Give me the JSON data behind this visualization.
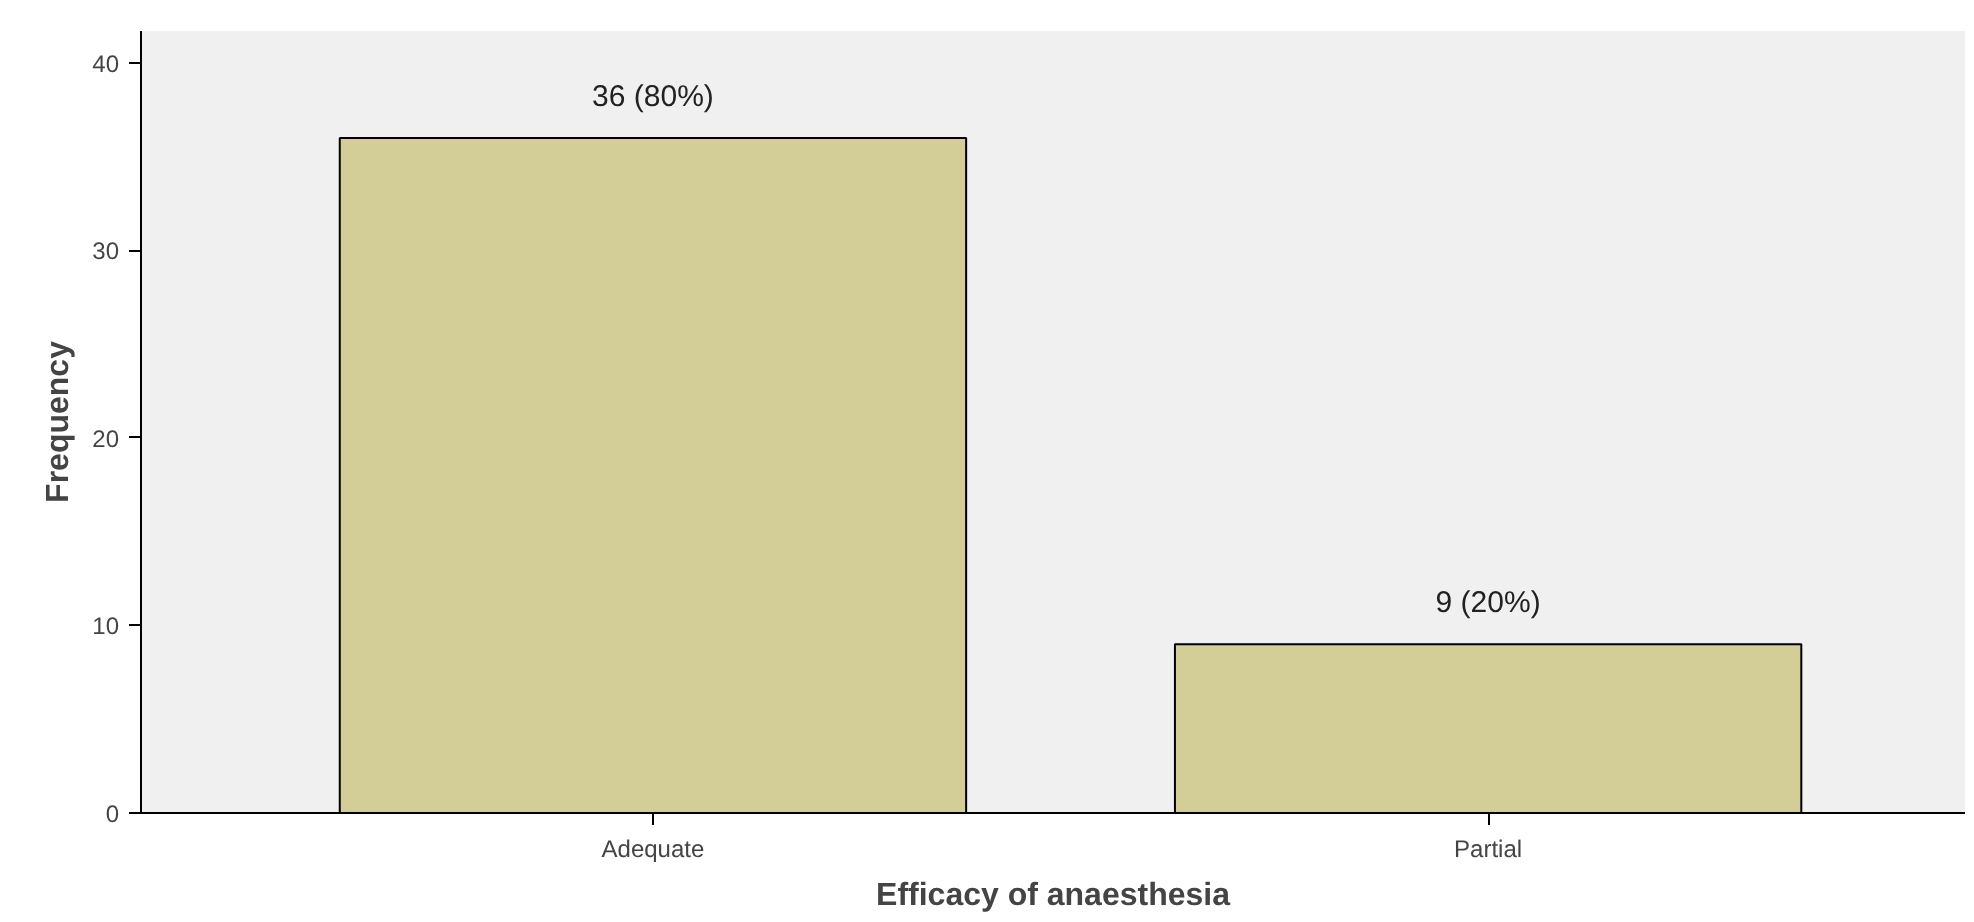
{
  "chart_data": {
    "type": "bar",
    "xlabel": "Efficacy of anaesthesia",
    "ylabel": "Frequency",
    "categories": [
      "Adequate",
      "Partial"
    ],
    "values": [
      36,
      9
    ],
    "value_labels": [
      "36 (80%)",
      "9 (20%)"
    ],
    "color": "#d3ce97",
    "ylim": [
      0,
      41.7
    ],
    "yticks": [
      0,
      10,
      20,
      30,
      40
    ],
    "grid": false
  }
}
